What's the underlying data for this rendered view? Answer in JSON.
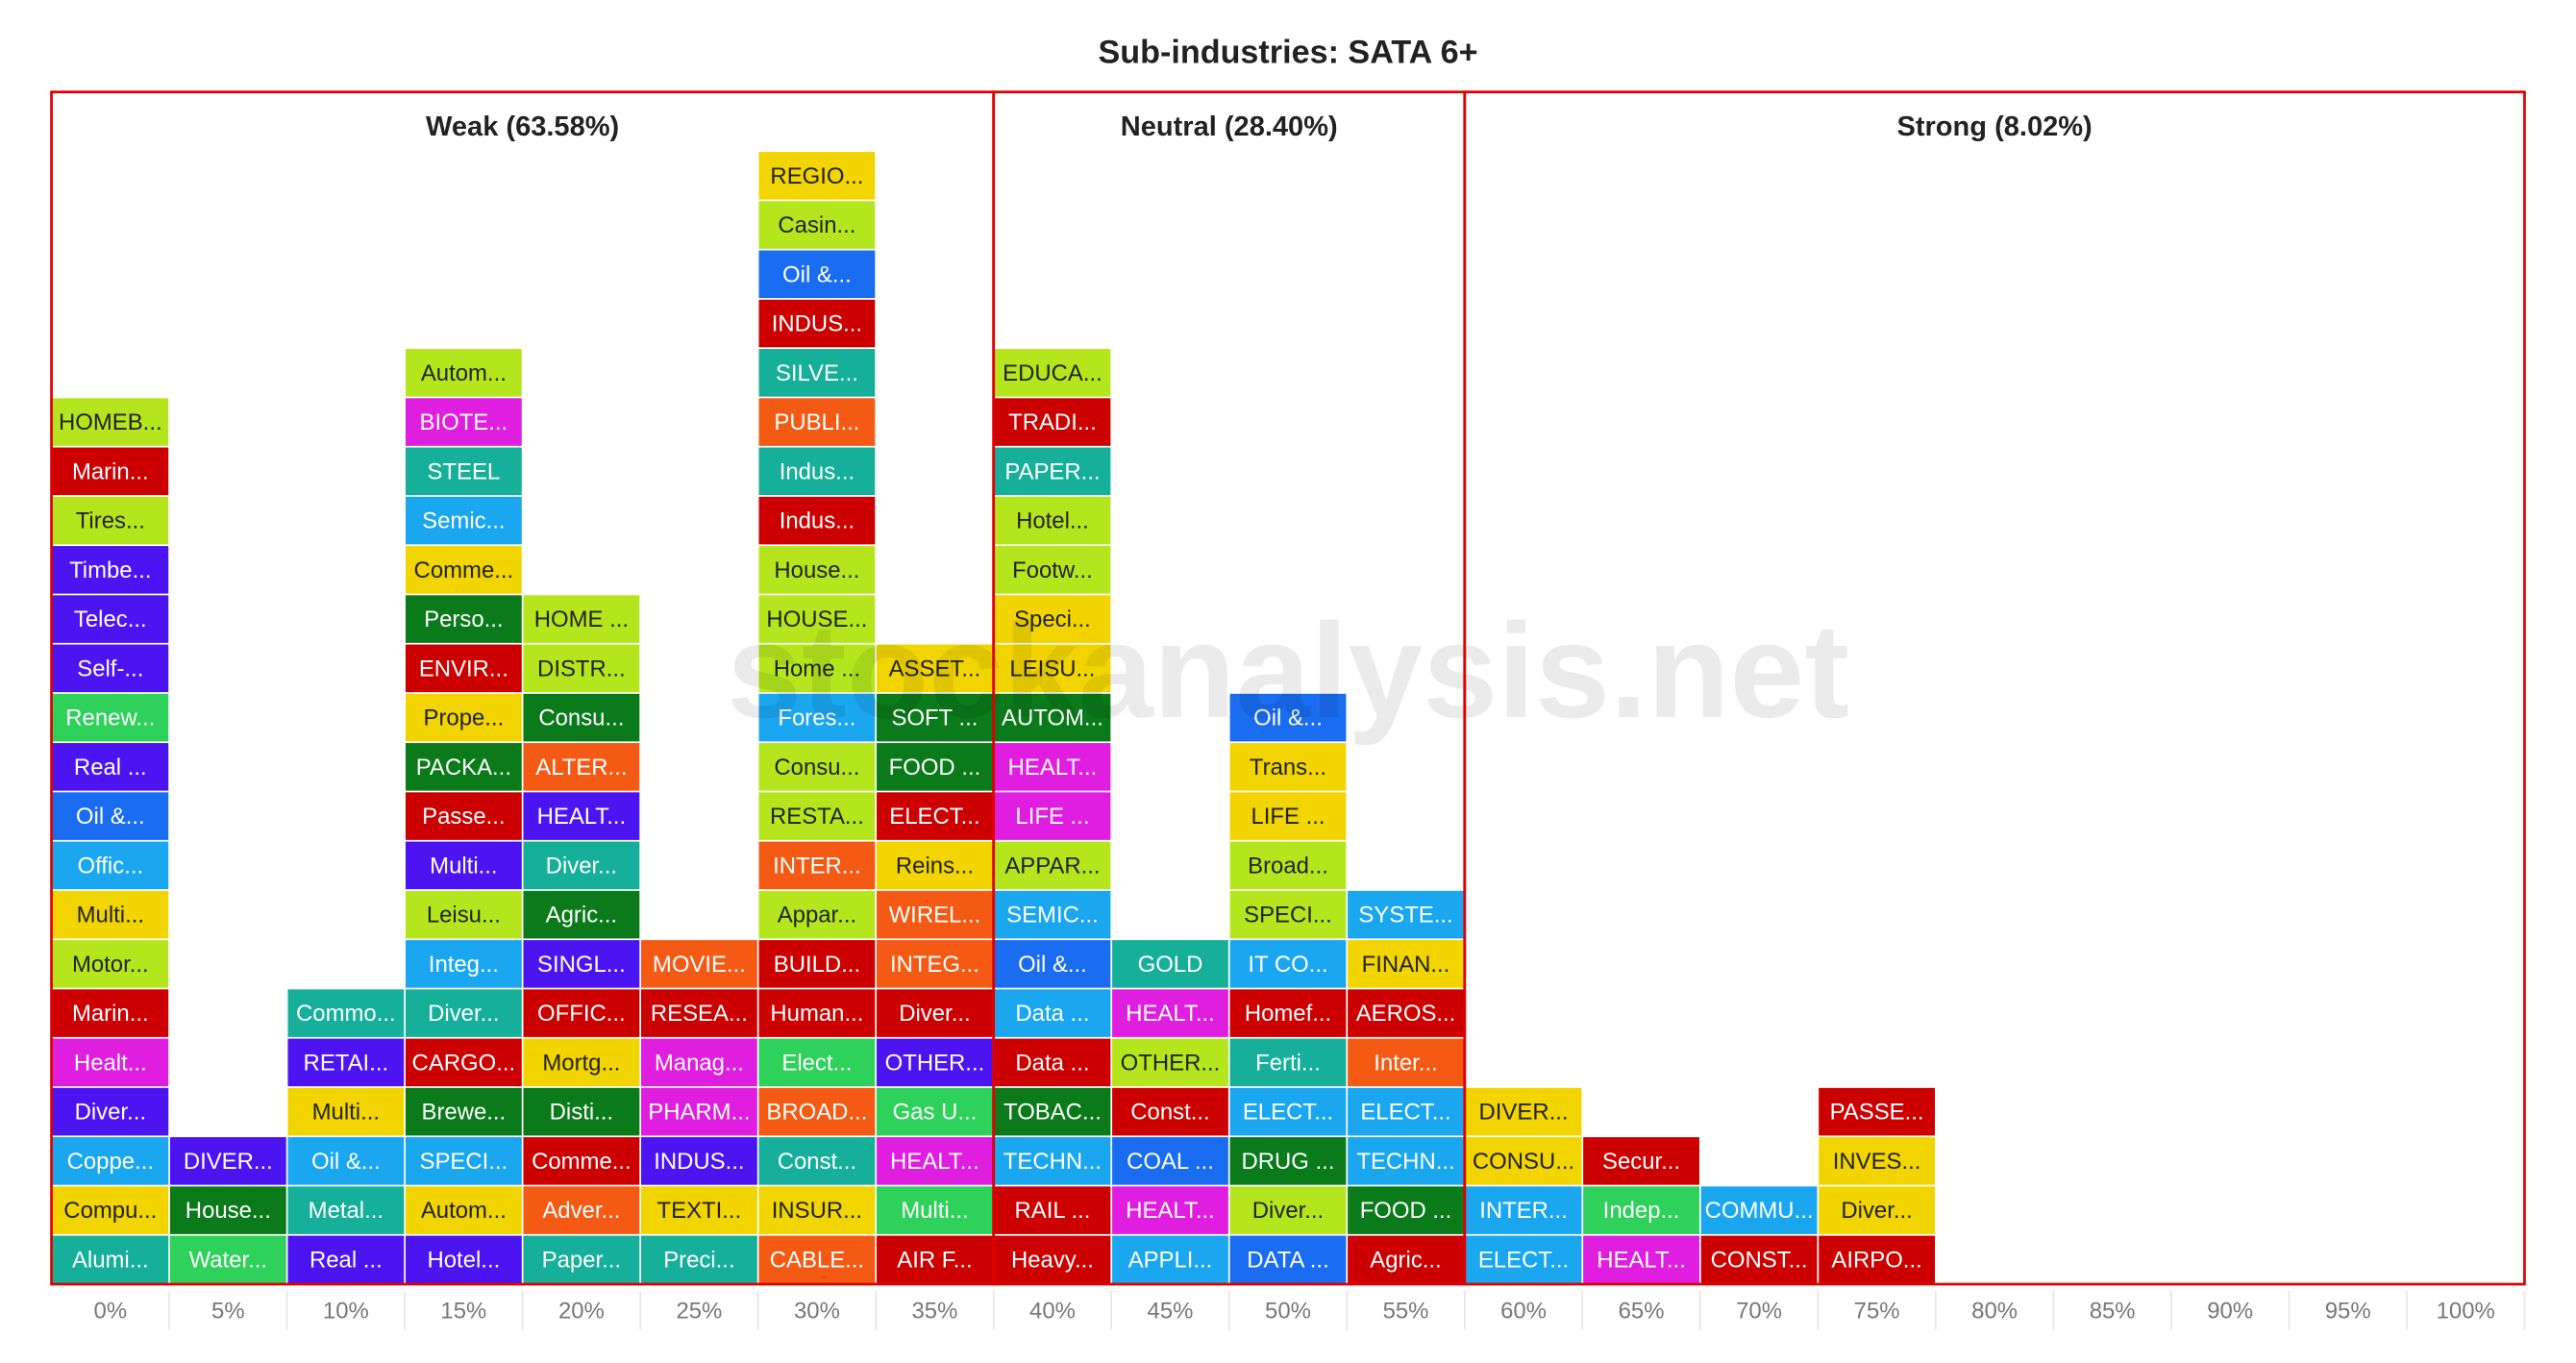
{
  "chart_data": {
    "type": "block-histogram",
    "title": "Sub-industries: SATA 6+",
    "watermark": "stockanalysis.net",
    "xlim": [
      -2.5,
      102.5
    ],
    "xticks": [
      {
        "value": 0,
        "label": "0%"
      },
      {
        "value": 5,
        "label": "5%"
      },
      {
        "value": 10,
        "label": "10%"
      },
      {
        "value": 15,
        "label": "15%"
      },
      {
        "value": 20,
        "label": "20%"
      },
      {
        "value": 25,
        "label": "25%"
      },
      {
        "value": 30,
        "label": "30%"
      },
      {
        "value": 35,
        "label": "35%"
      },
      {
        "value": 40,
        "label": "40%"
      },
      {
        "value": 45,
        "label": "45%"
      },
      {
        "value": 50,
        "label": "50%"
      },
      {
        "value": 55,
        "label": "55%"
      },
      {
        "value": 60,
        "label": "60%"
      },
      {
        "value": 65,
        "label": "65%"
      },
      {
        "value": 70,
        "label": "70%"
      },
      {
        "value": 75,
        "label": "75%"
      },
      {
        "value": 80,
        "label": "80%"
      },
      {
        "value": 85,
        "label": "85%"
      },
      {
        "value": 90,
        "label": "90%"
      },
      {
        "value": 95,
        "label": "95%"
      },
      {
        "value": 100,
        "label": "100%"
      }
    ],
    "sections": [
      {
        "label": "Weak (63.58%)",
        "from": 0,
        "to": 35,
        "color": "#e00000"
      },
      {
        "label": "Neutral (28.40%)",
        "from": 40,
        "to": 55,
        "color": "#e00000"
      },
      {
        "label": "Strong (8.02%)",
        "from": 60,
        "to": 100,
        "color": "#e00000"
      }
    ],
    "columns": [
      {
        "x": 0,
        "labels": [
          "Alumi...",
          "Compu...",
          "Coppe...",
          "Diver...",
          "Healt...",
          "Marin...",
          "Motor...",
          "Multi...",
          "Offic...",
          "Oil &...",
          "Real ...",
          "Renew...",
          "Self-...",
          "Telec...",
          "Timbe...",
          "Tires...",
          "Marin...",
          "HOMEB..."
        ],
        "colors": [
          "#16b09a",
          "#f2d500",
          "#1aa7f0",
          "#4b14f0",
          "#e01ee0",
          "#cc0000",
          "#b5e61d",
          "#f2d500",
          "#1aa7f0",
          "#1a6cf0",
          "#4b14f0",
          "#2ed15a",
          "#4b14f0",
          "#4b14f0",
          "#4b14f0",
          "#b5e61d",
          "#cc0000",
          "#b5e61d"
        ]
      },
      {
        "x": 5,
        "labels": [
          "Water...",
          "House...",
          "DIVER..."
        ],
        "colors": [
          "#2ed15a",
          "#0a7a1a",
          "#4b14f0"
        ]
      },
      {
        "x": 10,
        "labels": [
          "Real ...",
          "Metal...",
          "Oil &...",
          "Multi...",
          "RETAI...",
          "Commo..."
        ],
        "colors": [
          "#4b14f0",
          "#16b09a",
          "#1aa7f0",
          "#f2d500",
          "#4b14f0",
          "#16b09a"
        ]
      },
      {
        "x": 15,
        "labels": [
          "Hotel...",
          "Autom...",
          "SPECI...",
          "Brewe...",
          "CARGO...",
          "Diver...",
          "Integ...",
          "Leisu...",
          "Multi...",
          "Passe...",
          "PACKA...",
          "Prope...",
          "ENVIR...",
          "Perso...",
          "Comme...",
          "Semic...",
          "STEEL",
          "BIOTE...",
          "Autom..."
        ],
        "colors": [
          "#4b14f0",
          "#f2d500",
          "#1aa7f0",
          "#0a7a1a",
          "#cc0000",
          "#16b09a",
          "#1aa7f0",
          "#b5e61d",
          "#4b14f0",
          "#cc0000",
          "#0a7a1a",
          "#f2d500",
          "#cc0000",
          "#0a7a1a",
          "#f2d500",
          "#1aa7f0",
          "#16b09a",
          "#e01ee0",
          "#b5e61d"
        ]
      },
      {
        "x": 20,
        "labels": [
          "Paper...",
          "Adver...",
          "Comme...",
          "Disti...",
          "Mortg...",
          "OFFIC...",
          "SINGL...",
          "Agric...",
          "Diver...",
          "HEALT...",
          "ALTER...",
          "Consu...",
          "DISTR...",
          "HOME ..."
        ],
        "colors": [
          "#16b09a",
          "#f55a14",
          "#cc0000",
          "#0a7a1a",
          "#f2d500",
          "#cc0000",
          "#4b14f0",
          "#0a7a1a",
          "#16b09a",
          "#4b14f0",
          "#f55a14",
          "#0a7a1a",
          "#b5e61d",
          "#b5e61d"
        ]
      },
      {
        "x": 25,
        "labels": [
          "Preci...",
          "TEXTI...",
          "INDUS...",
          "PHARM...",
          "Manag...",
          "RESEA...",
          "MOVIE..."
        ],
        "colors": [
          "#16b09a",
          "#f2d500",
          "#4b14f0",
          "#e01ee0",
          "#e01ee0",
          "#cc0000",
          "#f55a14"
        ]
      },
      {
        "x": 30,
        "labels": [
          "CABLE...",
          "INSUR...",
          "Const...",
          "BROAD...",
          "Elect...",
          "Human...",
          "BUILD...",
          "Appar...",
          "INTER...",
          "RESTA...",
          "Consu...",
          "Fores...",
          "Home ...",
          "HOUSE...",
          "House...",
          "Indus...",
          "Indus...",
          "PUBLI...",
          "SILVE...",
          "INDUS...",
          "Oil &...",
          "Casin...",
          "REGIO..."
        ],
        "colors": [
          "#f55a14",
          "#f2d500",
          "#16b09a",
          "#f55a14",
          "#2ed15a",
          "#cc0000",
          "#cc0000",
          "#b5e61d",
          "#f55a14",
          "#b5e61d",
          "#b5e61d",
          "#1aa7f0",
          "#b5e61d",
          "#b5e61d",
          "#b5e61d",
          "#cc0000",
          "#16b09a",
          "#f55a14",
          "#16b09a",
          "#cc0000",
          "#1a6cf0",
          "#b5e61d",
          "#f2d500"
        ]
      },
      {
        "x": 35,
        "labels": [
          "AIR F...",
          "Multi...",
          "HEALT...",
          "Gas U...",
          "OTHER...",
          "Diver...",
          "INTEG...",
          "WIREL...",
          "Reins...",
          "ELECT...",
          "FOOD ...",
          "SOFT ...",
          "ASSET..."
        ],
        "colors": [
          "#cc0000",
          "#2ed15a",
          "#e01ee0",
          "#2ed15a",
          "#4b14f0",
          "#cc0000",
          "#f55a14",
          "#f55a14",
          "#f2d500",
          "#cc0000",
          "#0a7a1a",
          "#0a7a1a",
          "#f2d500"
        ]
      },
      {
        "x": 40,
        "labels": [
          "Heavy...",
          "RAIL ...",
          "TECHN...",
          "TOBAC...",
          "Data ...",
          "Data ...",
          "Oil &...",
          "SEMIC...",
          "APPAR...",
          "LIFE ...",
          "HEALT...",
          "AUTOM...",
          "LEISU...",
          "Speci...",
          "Footw...",
          "Hotel...",
          "PAPER...",
          "TRADI...",
          "EDUCA..."
        ],
        "colors": [
          "#cc0000",
          "#cc0000",
          "#1aa7f0",
          "#0a7a1a",
          "#cc0000",
          "#1aa7f0",
          "#1a6cf0",
          "#1aa7f0",
          "#b5e61d",
          "#e01ee0",
          "#e01ee0",
          "#0a7a1a",
          "#f2d500",
          "#f2d500",
          "#b5e61d",
          "#b5e61d",
          "#16b09a",
          "#cc0000",
          "#b5e61d"
        ]
      },
      {
        "x": 45,
        "labels": [
          "APPLI...",
          "HEALT...",
          "COAL ...",
          "Const...",
          "OTHER...",
          "HEALT...",
          "GOLD"
        ],
        "colors": [
          "#1aa7f0",
          "#e01ee0",
          "#1a6cf0",
          "#cc0000",
          "#b5e61d",
          "#e01ee0",
          "#16b09a"
        ]
      },
      {
        "x": 50,
        "labels": [
          "DATA ...",
          "Diver...",
          "DRUG ...",
          "ELECT...",
          "Ferti...",
          "Homef...",
          "IT CO...",
          "SPECI...",
          "Broad...",
          "LIFE ...",
          "Trans...",
          "Oil &..."
        ],
        "colors": [
          "#1a6cf0",
          "#b5e61d",
          "#0a7a1a",
          "#1aa7f0",
          "#16b09a",
          "#cc0000",
          "#1aa7f0",
          "#b5e61d",
          "#b5e61d",
          "#f2d500",
          "#f2d500",
          "#1a6cf0"
        ]
      },
      {
        "x": 55,
        "labels": [
          "Agric...",
          "FOOD ...",
          "TECHN...",
          "ELECT...",
          "Inter...",
          "AEROS...",
          "FINAN...",
          "SYSTE..."
        ],
        "colors": [
          "#cc0000",
          "#0a7a1a",
          "#1aa7f0",
          "#1aa7f0",
          "#f55a14",
          "#cc0000",
          "#f2d500",
          "#1aa7f0"
        ]
      },
      {
        "x": 60,
        "labels": [
          "ELECT...",
          "INTER...",
          "CONSU...",
          "DIVER..."
        ],
        "colors": [
          "#1aa7f0",
          "#1aa7f0",
          "#f2d500",
          "#f2d500"
        ]
      },
      {
        "x": 65,
        "labels": [
          "HEALT...",
          "Indep...",
          "Secur..."
        ],
        "colors": [
          "#e01ee0",
          "#2ed15a",
          "#cc0000"
        ]
      },
      {
        "x": 70,
        "labels": [
          "CONST...",
          "COMMU..."
        ],
        "colors": [
          "#cc0000",
          "#1aa7f0"
        ]
      },
      {
        "x": 75,
        "labels": [
          "AIRPO...",
          "Diver...",
          "INVES...",
          "PASSE..."
        ],
        "colors": [
          "#cc0000",
          "#f2d500",
          "#f2d500",
          "#cc0000"
        ]
      }
    ]
  }
}
